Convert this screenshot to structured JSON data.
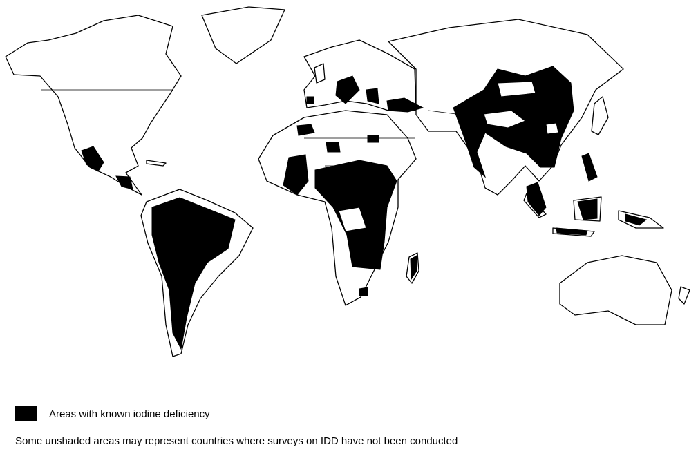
{
  "map": {
    "type": "world choropleth",
    "shaded_color": "#000000",
    "unshaded_color": "#ffffff",
    "shaded_regions": [
      "Mexico",
      "Central America",
      "South America (Andes / Amazon)",
      "West Africa",
      "Central Africa",
      "East/Southern Africa",
      "Madagascar",
      "Lesotho",
      "Alpine Europe",
      "Balkans",
      "Turkey",
      "Himalaya / South Asia",
      "China",
      "Southeast Asia",
      "Philippines",
      "Indonesia",
      "Papua New Guinea"
    ]
  },
  "legend": {
    "swatch_color": "#000000",
    "label": "Areas with known iodine deficiency"
  },
  "note": "Some unshaded areas may represent countries where surveys on IDD have not been conducted"
}
